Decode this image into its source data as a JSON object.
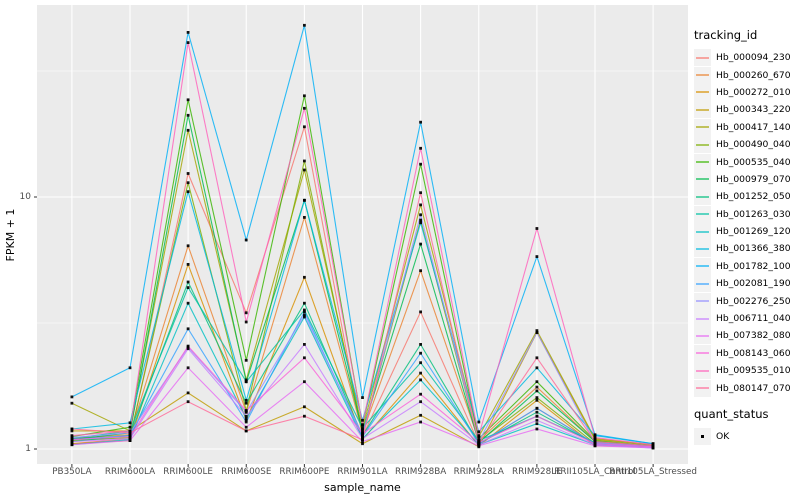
{
  "axes": {
    "x_title": "sample_name",
    "y_title": "FPKM + 1"
  },
  "legend": {
    "tracking_title": "tracking_id",
    "quant_title": "quant_status",
    "quant_label": "OK"
  },
  "chart_data": {
    "type": "line",
    "title": "",
    "xlabel": "sample_name",
    "ylabel": "FPKM + 1",
    "y_scale": "log10",
    "ylim": [
      0.93,
      58
    ],
    "grid": true,
    "legend_position": "right",
    "panel_bg": "#EBEBEB",
    "grid_color": "#FFFFFF",
    "tick_color": "#333333",
    "tick_label_color": "#4d4d4d",
    "point_color": "#000000",
    "quant_status": "OK",
    "y_ticks": [
      1,
      10
    ],
    "y_tick_labels": [
      "1",
      "10"
    ],
    "y_minor": [
      3.1623,
      31.623
    ],
    "categories": [
      "PB350LA",
      "RRIM600LA",
      "RRIM600LE",
      "RRIM600SE",
      "RRIM600PE",
      "RRIM901LA",
      "RRIM928BA",
      "RRIM928LA",
      "RRIM928LE",
      "RRII105LA_Control",
      "RRII105LA_Stressed"
    ],
    "series": [
      {
        "name": "Hb_000094_230",
        "color": "#F8766D",
        "values": [
          1.05,
          1.1,
          12.4,
          3.47,
          19.0,
          1.12,
          3.5,
          1.05,
          1.45,
          1.05,
          1.02
        ]
      },
      {
        "name": "Hb_000260_670",
        "color": "#EA8331",
        "values": [
          1.1,
          1.14,
          6.4,
          1.4,
          8.3,
          1.16,
          5.1,
          1.08,
          1.76,
          1.07,
          1.03
        ]
      },
      {
        "name": "Hb_000272_010",
        "color": "#D89000",
        "values": [
          1.05,
          1.08,
          5.4,
          1.3,
          4.8,
          1.09,
          2.0,
          1.03,
          1.56,
          1.03,
          1.02
        ]
      },
      {
        "name": "Hb_000343_220",
        "color": "#C09B00",
        "values": [
          1.18,
          1.18,
          1.67,
          1.18,
          1.47,
          1.05,
          1.36,
          1.02,
          2.9,
          1.09,
          1.04
        ]
      },
      {
        "name": "Hb_000417_140",
        "color": "#A3A500",
        "values": [
          1.52,
          1.18,
          18.4,
          1.88,
          12.8,
          1.2,
          9.3,
          1.12,
          2.95,
          1.1,
          1.04
        ]
      },
      {
        "name": "Hb_000490_040",
        "color": "#7CAE00",
        "values": [
          1.08,
          1.11,
          11.4,
          1.42,
          13.9,
          1.15,
          8.1,
          1.07,
          1.6,
          1.05,
          1.02
        ]
      },
      {
        "name": "Hb_000535_040",
        "color": "#39B600",
        "values": [
          1.12,
          1.22,
          24.3,
          2.25,
          25.2,
          1.24,
          13.5,
          1.1,
          1.85,
          1.08,
          1.03
        ]
      },
      {
        "name": "Hb_000979_070",
        "color": "#00BB4E",
        "values": [
          1.09,
          1.16,
          21.1,
          1.85,
          9.7,
          1.18,
          6.5,
          1.06,
          1.7,
          1.07,
          1.02
        ]
      },
      {
        "name": "Hb_001252_050",
        "color": "#00BF7D",
        "values": [
          1.07,
          1.13,
          4.6,
          1.52,
          3.79,
          1.13,
          2.6,
          1.05,
          1.4,
          1.05,
          1.02
        ]
      },
      {
        "name": "Hb_001263_030",
        "color": "#00C1A3",
        "values": [
          1.1,
          1.18,
          4.37,
          1.85,
          3.56,
          1.21,
          2.2,
          1.08,
          1.35,
          1.06,
          1.03
        ]
      },
      {
        "name": "Hb_001269_120",
        "color": "#00BFC4",
        "values": [
          1.04,
          1.09,
          3.79,
          1.32,
          3.34,
          1.1,
          1.88,
          1.04,
          1.26,
          1.04,
          1.01
        ]
      },
      {
        "name": "Hb_001366_380",
        "color": "#00BAE0",
        "values": [
          1.2,
          1.27,
          10.5,
          1.56,
          9.7,
          1.3,
          7.9,
          1.17,
          2.1,
          1.13,
          1.05
        ]
      },
      {
        "name": "Hb_001782_100",
        "color": "#00B0F6",
        "values": [
          1.61,
          2.1,
          45.0,
          6.75,
          48.0,
          1.6,
          19.8,
          1.28,
          5.8,
          1.14,
          1.05
        ]
      },
      {
        "name": "Hb_002081_190",
        "color": "#35A2FF",
        "values": [
          1.09,
          1.13,
          3.0,
          1.28,
          3.5,
          1.12,
          2.4,
          1.05,
          1.45,
          1.05,
          1.02
        ]
      },
      {
        "name": "Hb_002276_250",
        "color": "#9590FF",
        "values": [
          1.11,
          1.16,
          2.54,
          1.4,
          3.4,
          1.14,
          8.5,
          1.07,
          2.9,
          1.06,
          1.02
        ]
      },
      {
        "name": "Hb_006711_040",
        "color": "#C77CFF",
        "values": [
          1.07,
          1.1,
          2.5,
          1.35,
          2.6,
          1.1,
          1.54,
          1.04,
          1.3,
          1.04,
          1.01
        ]
      },
      {
        "name": "Hb_007382_080",
        "color": "#E76BF3",
        "values": [
          1.04,
          1.08,
          2.1,
          1.22,
          1.85,
          1.07,
          1.28,
          1.03,
          1.2,
          1.03,
          1.01
        ]
      },
      {
        "name": "Hb_008143_060",
        "color": "#FA62DB",
        "values": [
          1.09,
          1.12,
          2.56,
          1.42,
          2.3,
          1.15,
          1.65,
          1.06,
          1.35,
          1.05,
          1.02
        ]
      },
      {
        "name": "Hb_009535_010",
        "color": "#FF62BC",
        "values": [
          1.13,
          1.18,
          41.0,
          3.19,
          22.5,
          1.25,
          15.6,
          1.13,
          7.5,
          1.11,
          1.04
        ]
      },
      {
        "name": "Hb_080147_070",
        "color": "#FF6A98",
        "values": [
          1.2,
          1.16,
          1.54,
          1.18,
          1.35,
          1.09,
          10.4,
          1.05,
          2.3,
          1.07,
          1.03
        ]
      }
    ]
  }
}
